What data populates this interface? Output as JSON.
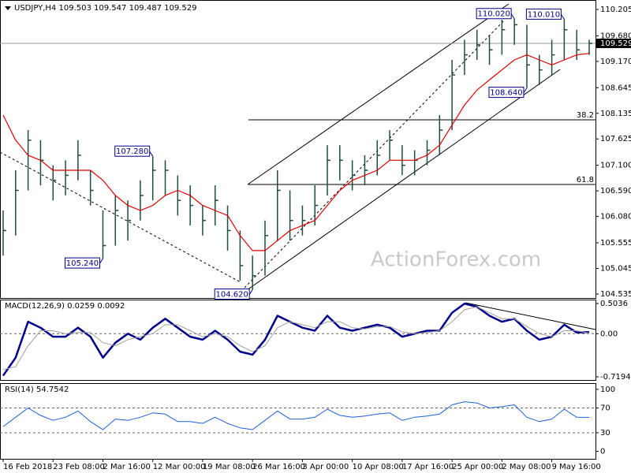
{
  "chart_data": [
    {
      "type": "ohlc",
      "symbol": "USDJPY,H4",
      "header_values": [
        109.503,
        109.547,
        109.487,
        109.529
      ],
      "categories": [
        "16 Feb 2018",
        null,
        null,
        null,
        "23 Feb 08:00",
        null,
        null,
        null,
        "2 Mar 16:00",
        null,
        null,
        null,
        "12 Mar 00:00",
        null,
        null,
        null,
        "19 Mar 08:00",
        null,
        null,
        null,
        "26 Mar 16:00",
        null,
        null,
        null,
        "3 Apr 00:00",
        null,
        null,
        null,
        "10 Apr 08:00",
        null,
        null,
        null,
        "17 Apr 16:00",
        null,
        null,
        null,
        "25 Apr 00:00",
        null,
        null,
        null,
        "2 May 08:00",
        null,
        null,
        null,
        "9 May 16:00",
        null,
        null,
        null
      ],
      "high": [
        106.2,
        107.0,
        107.8,
        107.6,
        107.1,
        107.2,
        107.6,
        107.0,
        106.2,
        106.5,
        106.4,
        106.8,
        107.28,
        107.2,
        106.9,
        106.7,
        106.3,
        106.7,
        106.3,
        105.8,
        105.3,
        106.0,
        107.0,
        106.6,
        106.3,
        106.7,
        107.5,
        107.5,
        107.2,
        107.3,
        107.6,
        107.8,
        107.5,
        107.4,
        107.6,
        108.1,
        109.2,
        109.6,
        109.8,
        109.7,
        110.0,
        110.02,
        109.9,
        109.3,
        109.6,
        110.01,
        109.8,
        109.6
      ],
      "low": [
        105.3,
        105.7,
        106.6,
        106.7,
        106.4,
        106.5,
        106.8,
        106.3,
        105.24,
        105.5,
        105.6,
        106.0,
        106.4,
        106.5,
        106.1,
        105.9,
        105.7,
        105.9,
        105.4,
        104.8,
        104.62,
        104.9,
        105.6,
        105.6,
        105.7,
        105.9,
        106.5,
        106.8,
        106.6,
        106.7,
        106.9,
        107.2,
        106.9,
        106.9,
        107.1,
        107.3,
        107.8,
        108.9,
        109.2,
        109.1,
        109.3,
        109.5,
        108.64,
        108.7,
        108.9,
        109.2,
        109.2,
        109.3
      ],
      "close": [
        105.8,
        106.6,
        107.6,
        107.2,
        106.8,
        106.9,
        107.3,
        106.6,
        105.5,
        106.2,
        106.0,
        106.5,
        107.0,
        107.0,
        106.4,
        106.3,
        106.0,
        106.4,
        105.8,
        105.1,
        104.9,
        105.7,
        106.6,
        106.0,
        106.0,
        106.3,
        107.2,
        107.2,
        106.9,
        107.0,
        107.3,
        107.6,
        107.1,
        107.2,
        107.4,
        107.8,
        108.9,
        109.3,
        109.5,
        109.4,
        109.8,
        109.9,
        109.1,
        109.0,
        109.3,
        109.8,
        109.4,
        109.529
      ],
      "color": "#1e4d3c",
      "ma": {
        "color": "#e00000",
        "values": [
          108.1,
          107.6,
          107.3,
          107.2,
          107.0,
          107.0,
          107.0,
          107.0,
          106.8,
          106.5,
          106.3,
          106.2,
          106.3,
          106.5,
          106.6,
          106.5,
          106.3,
          106.2,
          106.1,
          105.7,
          105.4,
          105.4,
          105.6,
          105.8,
          105.9,
          106.0,
          106.3,
          106.6,
          106.8,
          106.9,
          107.0,
          107.2,
          107.2,
          107.2,
          107.3,
          107.5,
          107.9,
          108.3,
          108.6,
          108.8,
          109.0,
          109.2,
          109.3,
          109.2,
          109.1,
          109.2,
          109.3,
          109.33
        ]
      },
      "current_price": 109.529,
      "levels": [
        {
          "ratio": 38.2,
          "price": 108.006
        },
        {
          "ratio": 61.8,
          "price": 106.718
        }
      ],
      "annotations": [
        {
          "at": 12,
          "value": 107.28,
          "label": "107.280"
        },
        {
          "at": 8,
          "value": 105.24,
          "label": "105.240"
        },
        {
          "at": 20,
          "value": 104.62,
          "label": "104.620"
        },
        {
          "at": 41,
          "value": 110.02,
          "label": "110.020"
        },
        {
          "at": 45,
          "value": 110.01,
          "label": "110.010"
        },
        {
          "at": 42,
          "value": 108.64,
          "label": "108.640"
        }
      ],
      "watermark": "ActionForex.com",
      "ylim": [
        104.456,
        110.393
      ],
      "yticks": [
        110.205,
        {
          "value": 109.68,
          "label": "109.680"
        },
        {
          "value": 109.17,
          "label": "109.170"
        },
        108.645,
        108.135,
        107.625,
        {
          "value": 107.1,
          "label": "107.100"
        },
        {
          "value": 106.59,
          "label": "106.590"
        },
        {
          "value": 106.08,
          "label": "106.080"
        },
        105.555,
        105.045,
        104.535
      ],
      "grid": false
    },
    {
      "type": "line",
      "name": "MACD(12,26,9)",
      "readout": [
        0.0259,
        0.0092
      ],
      "series": [
        {
          "color": "#00008b",
          "values": [
            -0.7,
            -0.4,
            0.2,
            0.1,
            -0.05,
            -0.05,
            0.1,
            -0.05,
            -0.4,
            -0.15,
            0.0,
            -0.1,
            0.1,
            0.25,
            0.1,
            -0.05,
            -0.1,
            0.05,
            -0.1,
            -0.3,
            -0.35,
            -0.1,
            0.3,
            0.2,
            0.1,
            0.05,
            0.3,
            0.1,
            0.05,
            0.1,
            0.15,
            0.1,
            -0.05,
            0.0,
            0.05,
            0.05,
            0.35,
            0.5,
            0.45,
            0.3,
            0.2,
            0.25,
            0.05,
            -0.1,
            -0.05,
            0.15,
            0.02,
            0.0259
          ]
        },
        {
          "color": "#a0a0a0",
          "values": [
            -0.6,
            -0.55,
            -0.2,
            0.05,
            0.05,
            0.0,
            0.02,
            0.02,
            -0.15,
            -0.2,
            -0.1,
            -0.05,
            0.0,
            0.15,
            0.15,
            0.05,
            -0.05,
            0.0,
            -0.05,
            -0.2,
            -0.3,
            -0.2,
            0.1,
            0.2,
            0.15,
            0.1,
            0.2,
            0.2,
            0.1,
            0.08,
            0.12,
            0.12,
            0.03,
            0.0,
            0.02,
            0.05,
            0.2,
            0.4,
            0.45,
            0.35,
            0.25,
            0.25,
            0.12,
            0.0,
            -0.05,
            0.05,
            0.05,
            0.0092
          ]
        }
      ],
      "ylim": [
        -0.772,
        0.569
      ],
      "yticks": [
        0.5036,
        {
          "value": 0,
          "label": "0.00"
        },
        -0.7194
      ],
      "grid": true
    },
    {
      "type": "line",
      "name": "RSI(14)",
      "readout": [
        54.7542
      ],
      "series": [
        {
          "color": "#1e5fd6",
          "values": [
            40,
            55,
            70,
            58,
            50,
            55,
            65,
            48,
            35,
            52,
            50,
            55,
            62,
            60,
            48,
            48,
            45,
            55,
            45,
            38,
            35,
            50,
            65,
            52,
            52,
            55,
            68,
            58,
            55,
            57,
            60,
            62,
            50,
            55,
            57,
            60,
            75,
            80,
            78,
            70,
            72,
            75,
            55,
            48,
            52,
            68,
            55,
            54.7542
          ]
        }
      ],
      "ylim": [
        -12,
        110
      ],
      "yticks": [
        100,
        70,
        30,
        0
      ],
      "grid": true
    }
  ]
}
